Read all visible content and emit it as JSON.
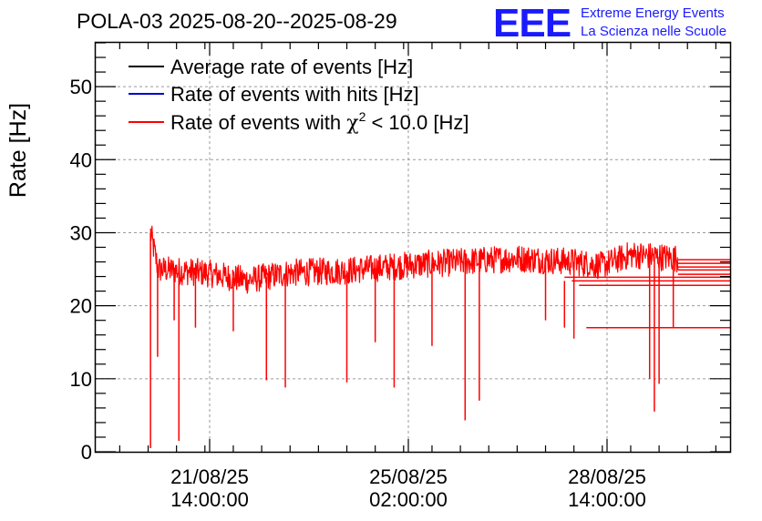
{
  "chart_data": {
    "type": "line",
    "title": "POLA-03 2025-08-20--2025-08-29",
    "ylabel": "Rate [Hz]",
    "xlabel": "",
    "ylim": [
      0,
      56
    ],
    "y_ticks": [
      0,
      10,
      20,
      30,
      40,
      50
    ],
    "x_tick_labels": [
      {
        "line1": "21/08/25",
        "line2": "14:00:00"
      },
      {
        "line1": "25/08/25",
        "line2": "02:00:00"
      },
      {
        "line1": "28/08/25",
        "line2": "14:00:00"
      }
    ],
    "grid": true,
    "legend_position": "top-left",
    "legend": [
      {
        "label": "Average rate of events [Hz]",
        "color": "#000000"
      },
      {
        "label": "Rate of events with hits [Hz]",
        "color": "#0000cc"
      },
      {
        "label_prefix": "Rate of events with ",
        "label_symbol": "χ",
        "label_sup": "2",
        "label_suffix": " < 10.0 [Hz]",
        "color": "#ff0000"
      }
    ],
    "series": [
      {
        "name": "Rate of events with χ2 < 10.0 [Hz]",
        "color": "#ff0000",
        "trend": [
          {
            "t": "2025-08-20 13:00",
            "y": 30.0
          },
          {
            "t": "2025-08-20 16:00",
            "y": 25.0
          },
          {
            "t": "2025-08-21 12:00",
            "y": 24.5
          },
          {
            "t": "2025-08-22 06:00",
            "y": 23.5
          },
          {
            "t": "2025-08-23 00:00",
            "y": 24.5
          },
          {
            "t": "2025-08-24 00:00",
            "y": 24.8
          },
          {
            "t": "2025-08-25 00:00",
            "y": 25.5
          },
          {
            "t": "2025-08-26 00:00",
            "y": 26.0
          },
          {
            "t": "2025-08-27 00:00",
            "y": 26.5
          },
          {
            "t": "2025-08-28 00:00",
            "y": 26.0
          },
          {
            "t": "2025-08-28 12:00",
            "y": 25.5
          },
          {
            "t": "2025-08-29 00:00",
            "y": 27.0
          },
          {
            "t": "2025-08-29 20:00",
            "y": 26.5
          }
        ],
        "dips": [
          {
            "t": "2025-08-20 13:00",
            "y": 0.5
          },
          {
            "t": "2025-08-20 16:00",
            "y": 13.0
          },
          {
            "t": "2025-08-20 23:00",
            "y": 18.0
          },
          {
            "t": "2025-08-21 01:00",
            "y": 1.5
          },
          {
            "t": "2025-08-21 08:00",
            "y": 17.0
          },
          {
            "t": "2025-08-22 00:00",
            "y": 16.5
          },
          {
            "t": "2025-08-22 14:00",
            "y": 9.8
          },
          {
            "t": "2025-08-22 22:00",
            "y": 8.8
          },
          {
            "t": "2025-08-24 00:00",
            "y": 9.5
          },
          {
            "t": "2025-08-24 12:00",
            "y": 15.0
          },
          {
            "t": "2025-08-25 12:00",
            "y": 14.5
          },
          {
            "t": "2025-08-24 20:00",
            "y": 8.8
          },
          {
            "t": "2025-08-26 02:00",
            "y": 4.3
          },
          {
            "t": "2025-08-26 08:00",
            "y": 7.0
          },
          {
            "t": "2025-08-27 12:00",
            "y": 18.0
          },
          {
            "t": "2025-08-28 00:00",
            "y": 15.5
          },
          {
            "t": "2025-08-29 08:00",
            "y": 10.0
          },
          {
            "t": "2025-08-29 10:00",
            "y": 5.5
          },
          {
            "t": "2025-08-29 12:00",
            "y": 9.3
          },
          {
            "t": "2025-08-29 18:00",
            "y": 17.0
          }
        ],
        "tail_levels": [
          26.3,
          25.8,
          25.3,
          24.9,
          24.3,
          23.9,
          23.4,
          22.8,
          17.0
        ]
      }
    ]
  },
  "logo": {
    "letters": "EEE",
    "line1": "Extreme Energy Events",
    "line2": "La Scienza nelle Scuole"
  }
}
